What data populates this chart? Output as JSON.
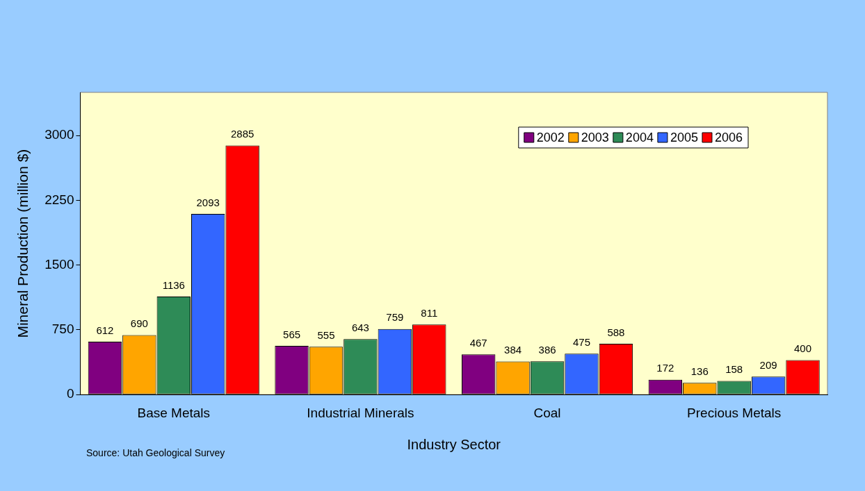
{
  "chart_data": {
    "type": "bar",
    "xlabel": "Industry Sector",
    "ylabel": "Mineral Production (million $)",
    "categories": [
      "Base Metals",
      "Industrial Minerals",
      "Coal",
      "Precious Metals"
    ],
    "series": [
      {
        "name": "2002",
        "color": "#800080",
        "values": [
          612,
          565,
          467,
          172
        ]
      },
      {
        "name": "2003",
        "color": "#ffa500",
        "values": [
          690,
          555,
          384,
          136
        ]
      },
      {
        "name": "2004",
        "color": "#2e8b57",
        "values": [
          1136,
          643,
          386,
          158
        ]
      },
      {
        "name": "2005",
        "color": "#3366ff",
        "values": [
          2093,
          759,
          475,
          209
        ]
      },
      {
        "name": "2006",
        "color": "#ff0000",
        "values": [
          2885,
          811,
          588,
          400
        ]
      }
    ],
    "ylim": [
      0,
      3500
    ],
    "yticks": [
      0,
      750,
      1500,
      2250,
      3000
    ],
    "grid": false,
    "legend": "top right",
    "data_labels": true,
    "annotations": [
      "Source: Utah Geological Survey"
    ]
  }
}
